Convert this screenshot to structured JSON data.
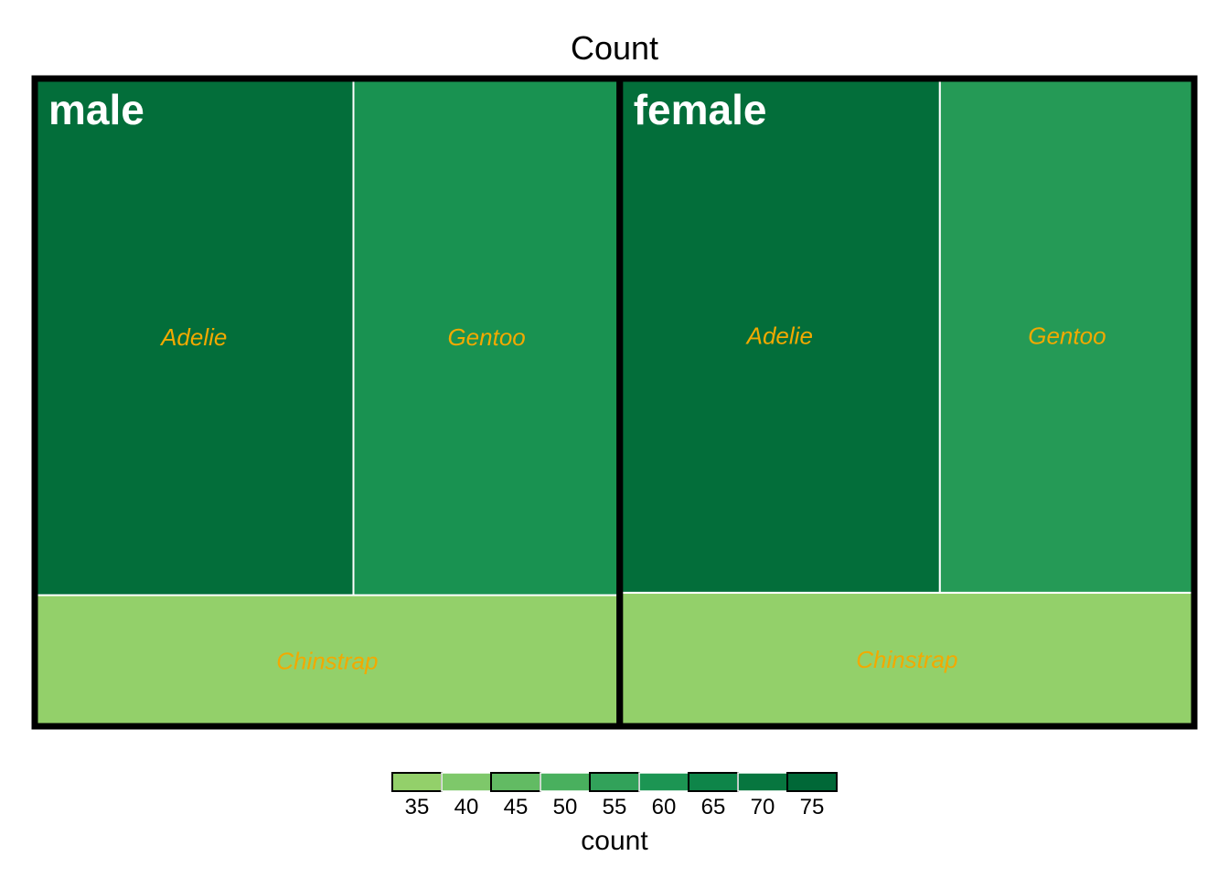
{
  "chart_data": {
    "type": "treemap",
    "title": "Count",
    "fill_variable": "count",
    "groups": [
      {
        "name": "male",
        "tiles": [
          {
            "name": "Adelie",
            "value": 73
          },
          {
            "name": "Gentoo",
            "value": 61
          },
          {
            "name": "Chinstrap",
            "value": 34
          }
        ]
      },
      {
        "name": "female",
        "tiles": [
          {
            "name": "Adelie",
            "value": 73
          },
          {
            "name": "Gentoo",
            "value": 58
          },
          {
            "name": "Chinstrap",
            "value": 34
          }
        ]
      }
    ],
    "legend": {
      "title": "count",
      "position": "bottom",
      "breaks": [
        "35",
        "40",
        "45",
        "50",
        "55",
        "60",
        "65",
        "70",
        "75"
      ],
      "colors": [
        "#93d06a",
        "#7ec86a",
        "#62bb63",
        "#49b05e",
        "#32a25a",
        "#1c9553",
        "#0e8549",
        "#07763f",
        "#006837"
      ]
    },
    "colors": {
      "label": "#f2a900",
      "group_label": "#ffffff",
      "border": "#000000"
    }
  }
}
